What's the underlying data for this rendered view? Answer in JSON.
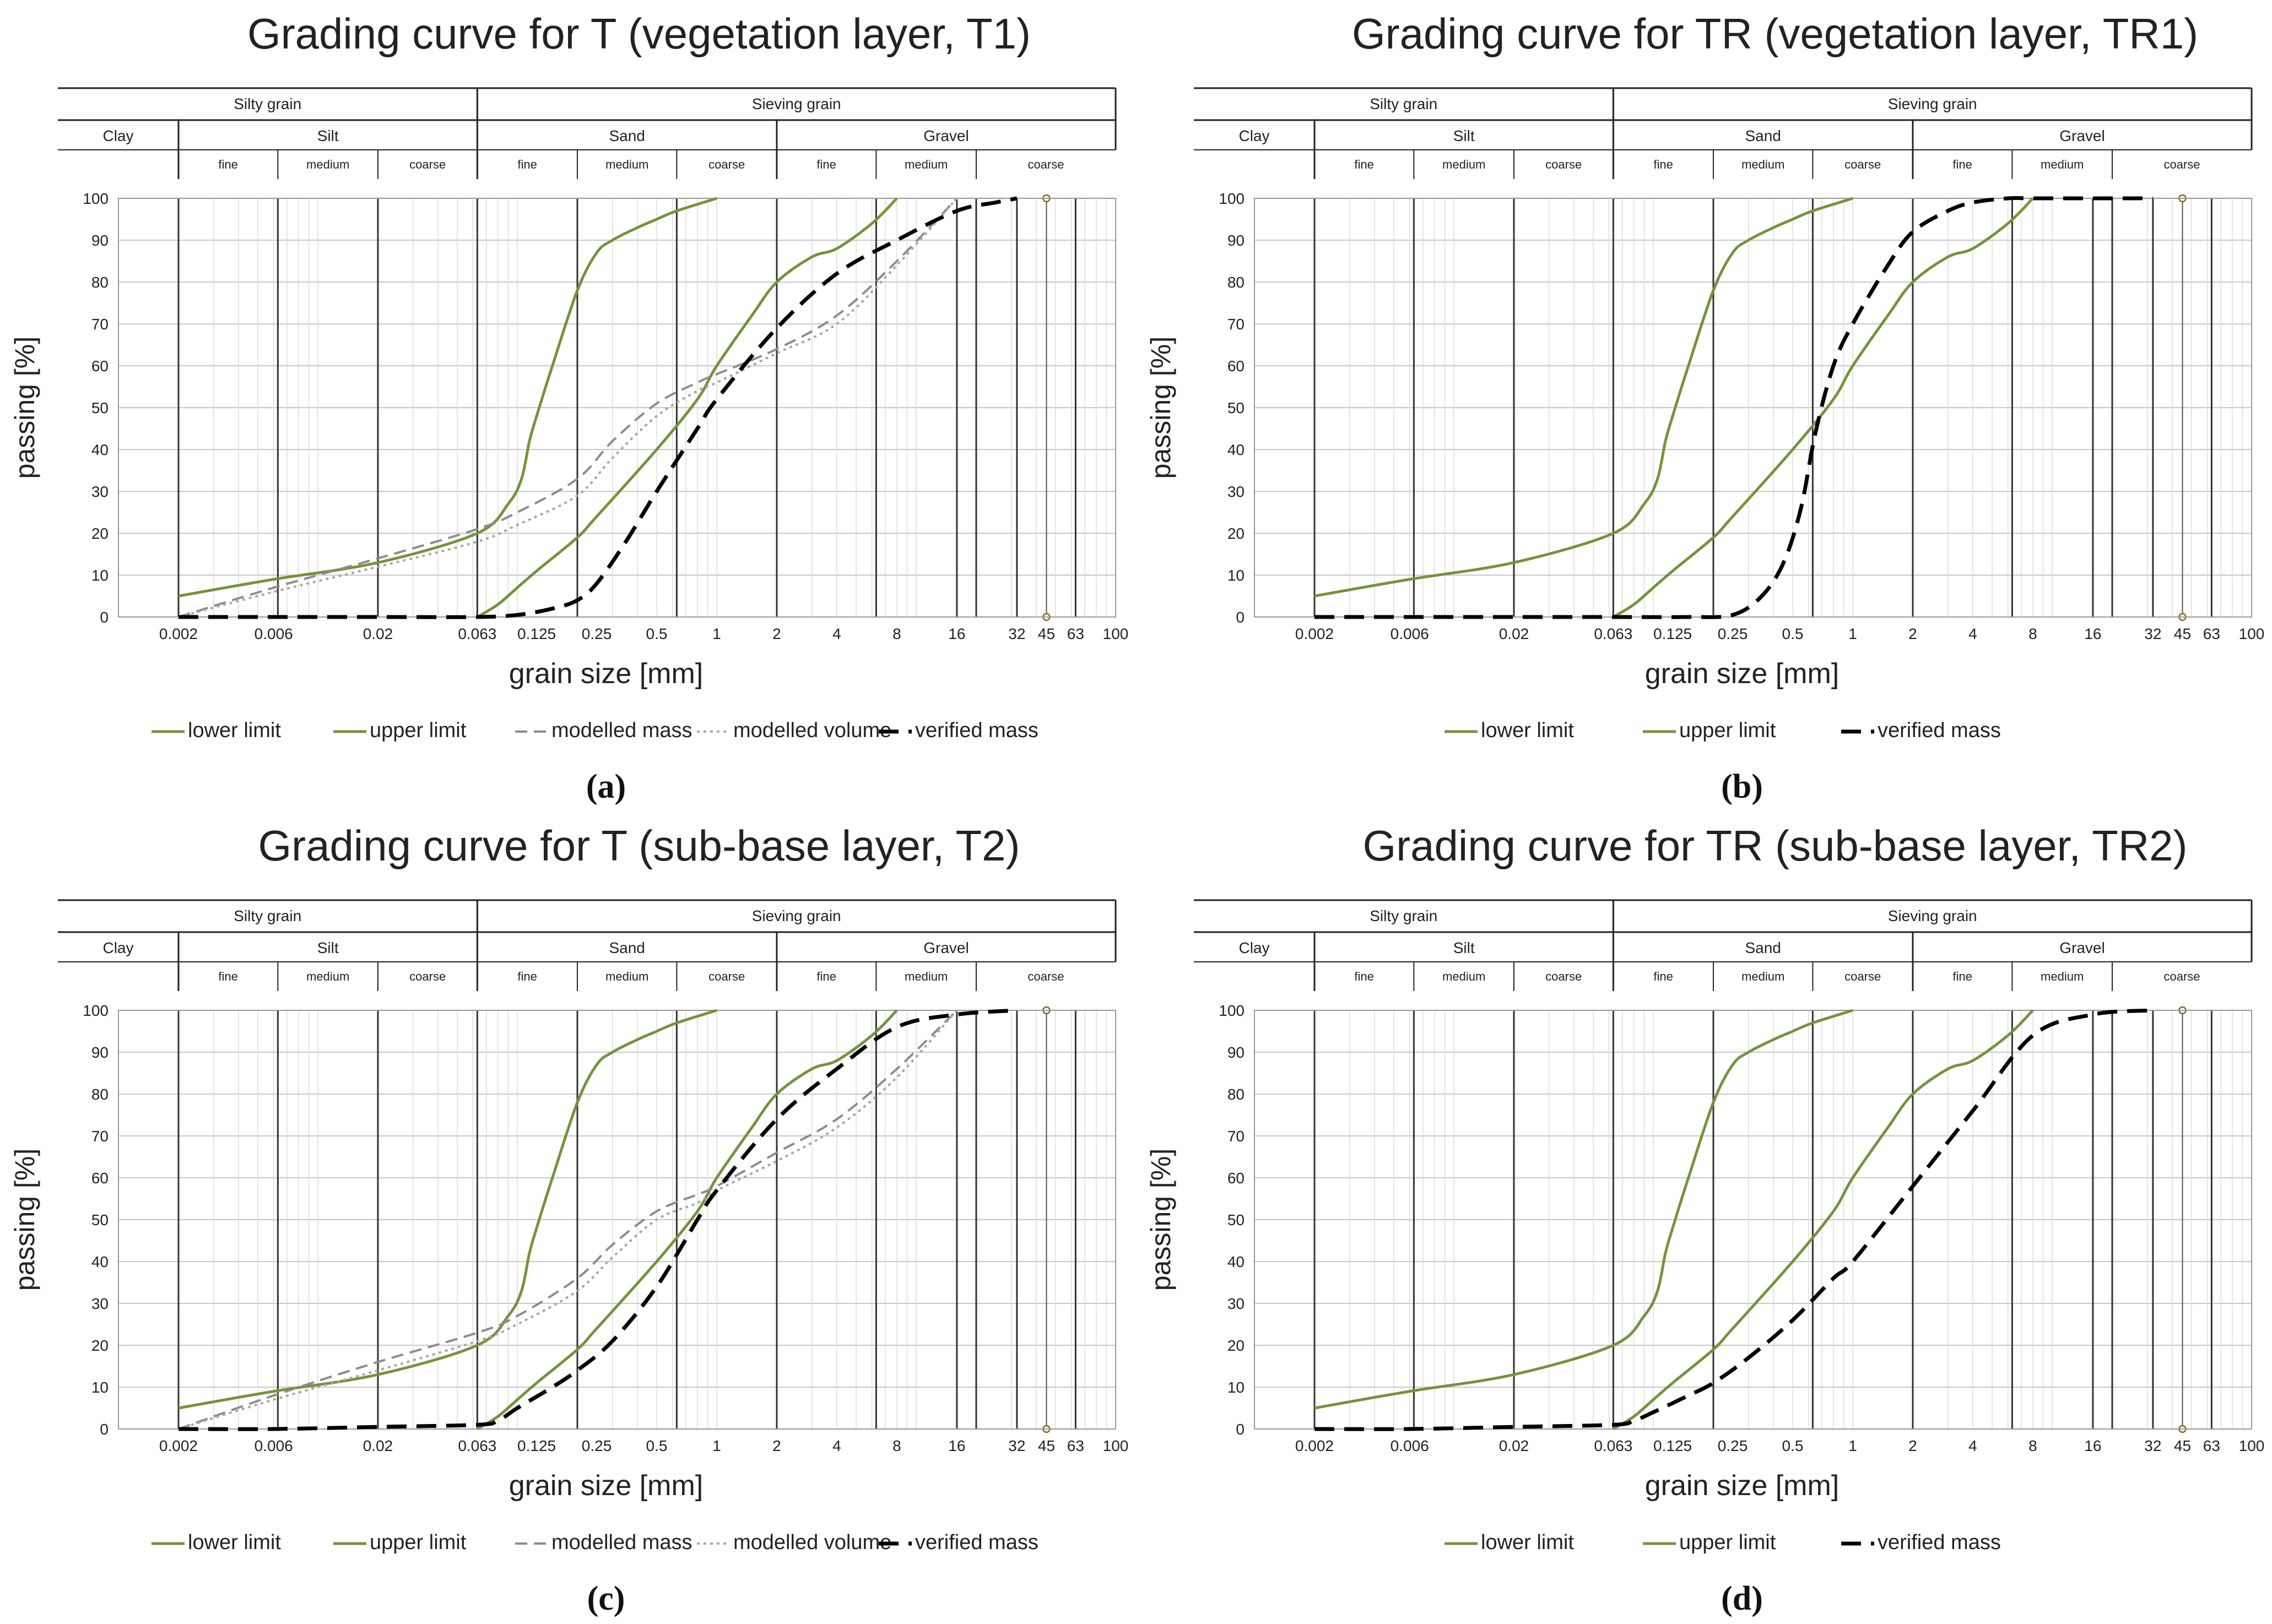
{
  "figure": {
    "shared": {
      "xlabel": "grain size [mm]",
      "ylabel": "passing [%]",
      "yticks": [
        0,
        10,
        20,
        30,
        40,
        50,
        60,
        70,
        80,
        90,
        100
      ],
      "xticks": [
        {
          "v": 0.002,
          "t": "0.002"
        },
        {
          "v": 0.006,
          "t": "0.006"
        },
        {
          "v": 0.02,
          "t": "0.02"
        },
        {
          "v": 0.063,
          "t": "0.063"
        },
        {
          "v": 0.125,
          "t": "0.125"
        },
        {
          "v": 0.25,
          "t": "0.25"
        },
        {
          "v": 0.5,
          "t": "0.5"
        },
        {
          "v": 1,
          "t": "1"
        },
        {
          "v": 2,
          "t": "2"
        },
        {
          "v": 4,
          "t": "4"
        },
        {
          "v": 8,
          "t": "8"
        },
        {
          "v": 16,
          "t": "16"
        },
        {
          "v": 32,
          "t": "32"
        },
        {
          "v": 45,
          "t": "45"
        },
        {
          "v": 63,
          "t": "63"
        },
        {
          "v": 100,
          "t": "100"
        }
      ],
      "bands": {
        "top": [
          {
            "label": "Silty grain",
            "from": 0.001,
            "to": 0.063
          },
          {
            "label": "Sieving grain",
            "from": 0.063,
            "to": 100
          }
        ],
        "mid": [
          {
            "label": "Clay",
            "from": 0.001,
            "to": 0.002
          },
          {
            "label": "Silt",
            "from": 0.002,
            "to": 0.063
          },
          {
            "label": "Sand",
            "from": 0.063,
            "to": 2
          },
          {
            "label": "Gravel",
            "from": 2,
            "to": 100
          }
        ],
        "low": [
          {
            "label": "fine",
            "from": 0.002,
            "to": 0.0063
          },
          {
            "label": "medium",
            "from": 0.0063,
            "to": 0.02
          },
          {
            "label": "coarse",
            "from": 0.02,
            "to": 0.063
          },
          {
            "label": "fine",
            "from": 0.063,
            "to": 0.2
          },
          {
            "label": "medium",
            "from": 0.2,
            "to": 0.63
          },
          {
            "label": "coarse",
            "from": 0.63,
            "to": 2
          },
          {
            "label": "fine",
            "from": 2,
            "to": 6.3
          },
          {
            "label": "medium",
            "from": 6.3,
            "to": 20
          },
          {
            "label": "coarse",
            "from": 20,
            "to": 100
          }
        ]
      },
      "colors": {
        "green": "#76923c",
        "modelled_mass": "#8c8c8c",
        "modelled_volume": "#a6a6a6",
        "verified": "#000000",
        "grid": "#c8c8c8",
        "frame": "#222222"
      }
    }
  },
  "chart_data": [
    {
      "type": "line",
      "panel": "(a)",
      "title": "Grading curve for T (vegetation layer, T1)",
      "xlabel": "grain size [mm]",
      "ylabel": "passing [%]",
      "xscale": "log",
      "xlim": [
        0.001,
        100
      ],
      "ylim": [
        0,
        100
      ],
      "legend": [
        "lower limit",
        "upper limit",
        "modelled mass",
        "modelled volume",
        "verified mass"
      ],
      "series": [
        {
          "name": "lower limit",
          "style": "green",
          "x": [
            0.002,
            0.006,
            0.02,
            0.063,
            0.09,
            0.105,
            0.115,
            0.125,
            0.15,
            0.2,
            0.25,
            0.3,
            0.4,
            0.5,
            0.63,
            1
          ],
          "y": [
            5,
            9,
            13,
            20,
            27,
            33,
            42,
            48,
            60,
            78,
            87,
            90,
            93,
            95,
            97,
            100
          ]
        },
        {
          "name": "upper limit",
          "style": "green",
          "x": [
            0.063,
            0.08,
            0.1,
            0.125,
            0.2,
            0.25,
            0.5,
            0.8,
            1,
            1.5,
            2,
            3,
            4,
            6,
            8
          ],
          "y": [
            0,
            3,
            7,
            11,
            19,
            24,
            40,
            52,
            60,
            72,
            80,
            86,
            88,
            94,
            100
          ]
        },
        {
          "name": "modelled mass",
          "style": "mass",
          "x": [
            0.002,
            0.006,
            0.02,
            0.063,
            0.1,
            0.2,
            0.3,
            0.5,
            0.8,
            1,
            2,
            4,
            8,
            16
          ],
          "y": [
            0,
            7,
            14,
            21,
            25,
            33,
            42,
            51,
            56,
            58,
            64,
            72,
            85,
            100
          ]
        },
        {
          "name": "modelled volume",
          "style": "volume",
          "x": [
            0.002,
            0.006,
            0.02,
            0.063,
            0.1,
            0.2,
            0.3,
            0.5,
            0.8,
            1,
            2,
            4,
            8,
            16
          ],
          "y": [
            0,
            6,
            12,
            18,
            22,
            29,
            38,
            48,
            54,
            56,
            63,
            70,
            84,
            100
          ]
        },
        {
          "name": "verified mass",
          "style": "verified",
          "x": [
            0.002,
            0.006,
            0.02,
            0.063,
            0.1,
            0.15,
            0.2,
            0.25,
            0.35,
            0.5,
            0.8,
            1,
            2,
            4,
            8,
            16,
            25,
            32
          ],
          "y": [
            0,
            0,
            0,
            0,
            0.5,
            2,
            4,
            8,
            18,
            30,
            45,
            52,
            69,
            82,
            90,
            97,
            99,
            100
          ]
        }
      ]
    },
    {
      "type": "line",
      "panel": "(b)",
      "title": "Grading curve for TR (vegetation layer, TR1)",
      "xlabel": "grain size [mm]",
      "ylabel": "passing [%]",
      "xscale": "log",
      "xlim": [
        0.001,
        100
      ],
      "ylim": [
        0,
        100
      ],
      "legend": [
        "lower limit",
        "upper limit",
        "verified mass"
      ],
      "series": [
        {
          "name": "lower limit",
          "style": "green",
          "x": [
            0.002,
            0.006,
            0.02,
            0.063,
            0.09,
            0.105,
            0.115,
            0.125,
            0.15,
            0.2,
            0.25,
            0.3,
            0.4,
            0.5,
            0.63,
            1
          ],
          "y": [
            5,
            9,
            13,
            20,
            27,
            33,
            42,
            48,
            60,
            78,
            87,
            90,
            93,
            95,
            97,
            100
          ]
        },
        {
          "name": "upper limit",
          "style": "green",
          "x": [
            0.063,
            0.08,
            0.1,
            0.125,
            0.2,
            0.25,
            0.5,
            0.8,
            1,
            1.5,
            2,
            3,
            4,
            6,
            8
          ],
          "y": [
            0,
            3,
            7,
            11,
            19,
            24,
            40,
            52,
            60,
            72,
            80,
            86,
            88,
            94,
            100
          ]
        },
        {
          "name": "verified mass",
          "style": "verified",
          "x": [
            0.002,
            0.006,
            0.02,
            0.063,
            0.15,
            0.25,
            0.35,
            0.45,
            0.55,
            0.65,
            0.8,
            1,
            1.5,
            2,
            3,
            4,
            6,
            8,
            16,
            32
          ],
          "y": [
            0,
            0,
            0,
            0,
            0,
            0.5,
            5,
            13,
            26,
            44,
            60,
            70,
            84,
            92,
            97,
            99,
            100,
            100,
            100,
            100
          ]
        }
      ]
    },
    {
      "type": "line",
      "panel": "(c)",
      "title": "Grading curve for T (sub-base layer, T2)",
      "xlabel": "grain size [mm]",
      "ylabel": "passing [%]",
      "xscale": "log",
      "xlim": [
        0.001,
        100
      ],
      "ylim": [
        0,
        100
      ],
      "legend": [
        "lower limit",
        "upper limit",
        "modelled mass",
        "modelled volume",
        "verified mass"
      ],
      "series": [
        {
          "name": "lower limit",
          "style": "green",
          "x": [
            0.002,
            0.006,
            0.02,
            0.063,
            0.09,
            0.105,
            0.115,
            0.125,
            0.15,
            0.2,
            0.25,
            0.3,
            0.4,
            0.5,
            0.63,
            1
          ],
          "y": [
            5,
            9,
            13,
            20,
            27,
            33,
            42,
            48,
            60,
            78,
            87,
            90,
            93,
            95,
            97,
            100
          ]
        },
        {
          "name": "upper limit",
          "style": "green",
          "x": [
            0.063,
            0.08,
            0.1,
            0.125,
            0.2,
            0.25,
            0.5,
            0.8,
            1,
            1.5,
            2,
            3,
            4,
            6,
            8
          ],
          "y": [
            0,
            3,
            7,
            11,
            19,
            24,
            40,
            52,
            60,
            72,
            80,
            86,
            88,
            94,
            100
          ]
        },
        {
          "name": "modelled mass",
          "style": "mass",
          "x": [
            0.002,
            0.006,
            0.02,
            0.063,
            0.1,
            0.2,
            0.3,
            0.5,
            0.8,
            1,
            2,
            4,
            8,
            16
          ],
          "y": [
            0,
            8,
            16,
            23,
            27,
            36,
            44,
            52,
            56,
            58,
            66,
            74,
            86,
            100
          ]
        },
        {
          "name": "modelled volume",
          "style": "volume",
          "x": [
            0.002,
            0.006,
            0.02,
            0.063,
            0.1,
            0.2,
            0.3,
            0.5,
            0.8,
            1,
            2,
            4,
            8,
            16
          ],
          "y": [
            0,
            7,
            14,
            21,
            25,
            33,
            41,
            50,
            54,
            57,
            64,
            72,
            84,
            100
          ]
        },
        {
          "name": "verified mass",
          "style": "verified",
          "x": [
            0.002,
            0.006,
            0.02,
            0.063,
            0.08,
            0.1,
            0.15,
            0.2,
            0.3,
            0.5,
            0.8,
            1,
            2,
            4,
            8,
            16,
            32
          ],
          "y": [
            0,
            0,
            0.5,
            1,
            2,
            5,
            10,
            14,
            21,
            34,
            50,
            57,
            74,
            86,
            96,
            99,
            100
          ]
        }
      ]
    },
    {
      "type": "line",
      "panel": "(d)",
      "title": "Grading curve for TR (sub-base layer, TR2)",
      "xlabel": "grain size [mm]",
      "ylabel": "passing [%]",
      "xscale": "log",
      "xlim": [
        0.001,
        100
      ],
      "ylim": [
        0,
        100
      ],
      "legend": [
        "lower limit",
        "upper limit",
        "verified mass"
      ],
      "series": [
        {
          "name": "lower limit",
          "style": "green",
          "x": [
            0.002,
            0.006,
            0.02,
            0.063,
            0.09,
            0.105,
            0.115,
            0.125,
            0.15,
            0.2,
            0.25,
            0.3,
            0.4,
            0.5,
            0.63,
            1
          ],
          "y": [
            5,
            9,
            13,
            20,
            27,
            33,
            42,
            48,
            60,
            78,
            87,
            90,
            93,
            95,
            97,
            100
          ]
        },
        {
          "name": "upper limit",
          "style": "green",
          "x": [
            0.063,
            0.08,
            0.1,
            0.125,
            0.2,
            0.25,
            0.5,
            0.8,
            1,
            1.5,
            2,
            3,
            4,
            6,
            8
          ],
          "y": [
            0,
            3,
            7,
            11,
            19,
            24,
            40,
            52,
            60,
            72,
            80,
            86,
            88,
            94,
            100
          ]
        },
        {
          "name": "verified mass",
          "style": "verified",
          "x": [
            0.002,
            0.006,
            0.02,
            0.063,
            0.08,
            0.1,
            0.15,
            0.2,
            0.3,
            0.5,
            0.8,
            1,
            2,
            4,
            8,
            16,
            32
          ],
          "y": [
            0,
            0,
            0.5,
            1,
            2,
            4,
            8,
            11,
            17,
            26,
            36,
            40,
            58,
            76,
            94,
            99,
            100
          ]
        }
      ]
    }
  ]
}
